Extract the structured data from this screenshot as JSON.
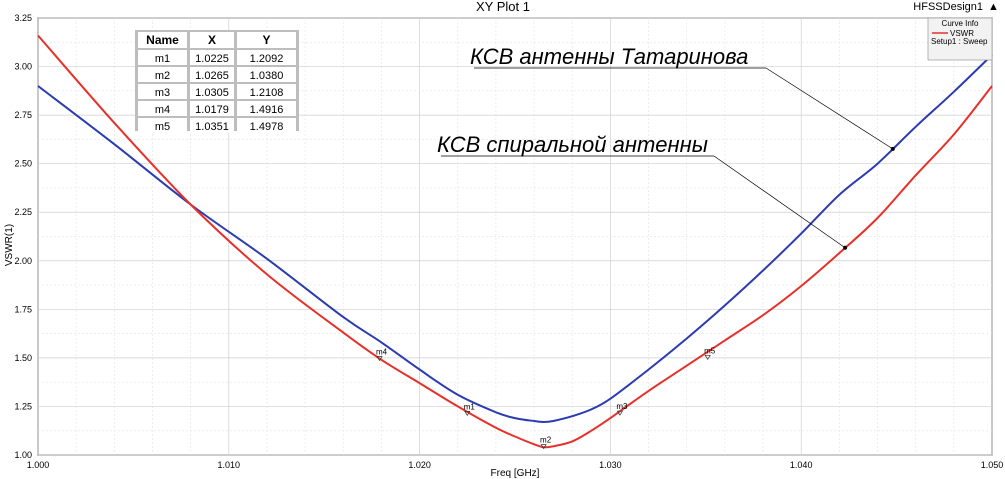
{
  "header": {
    "design_name": "HFSSDesign1",
    "scroll_arrow": "▲"
  },
  "legend": {
    "title": "Curve Info",
    "entries": [
      {
        "label": "VSWR",
        "sub": "Setup1 : Sweep",
        "color": "#e8302a"
      }
    ]
  },
  "marker_table": {
    "headers": [
      "Name",
      "X",
      "Y"
    ],
    "rows": [
      [
        "m1",
        "1.0225",
        "1.2092"
      ],
      [
        "m2",
        "1.0265",
        "1.0380"
      ],
      [
        "m3",
        "1.0305",
        "1.2108"
      ],
      [
        "m4",
        "1.0179",
        "1.4916"
      ],
      [
        "m5",
        "1.0351",
        "1.4978"
      ]
    ]
  },
  "annotations": [
    {
      "text": "КСВ антенны Татаринова",
      "target_series": 0,
      "target_x": 1.0448
    },
    {
      "text": "КСВ спиральной антенны",
      "target_series": 1,
      "target_x": 1.0423
    }
  ],
  "chart_data": {
    "type": "line",
    "title": "XY Plot 1",
    "xlabel": "Freq [GHz]",
    "ylabel": "VSWR(1)",
    "xlim": [
      1.0,
      1.05
    ],
    "ylim": [
      1.0,
      3.25
    ],
    "xticks": [
      1.0,
      1.01,
      1.02,
      1.03,
      1.04,
      1.05
    ],
    "xtick_labels": [
      "1.000",
      "1.010",
      "1.020",
      "1.030",
      "1.040",
      "1.050"
    ],
    "yticks": [
      1.0,
      1.25,
      1.5,
      1.75,
      2.0,
      2.25,
      2.5,
      2.75,
      3.0,
      3.25
    ],
    "ytick_labels": [
      "1.00",
      "1.25",
      "1.50",
      "1.75",
      "2.00",
      "2.25",
      "2.50",
      "2.75",
      "3.00",
      "3.25"
    ],
    "grid": true,
    "series": [
      {
        "color": "#2b3bb0",
        "x": [
          1.0,
          1.004,
          1.008,
          1.012,
          1.016,
          1.018,
          1.02,
          1.022,
          1.024,
          1.025,
          1.026,
          1.0265,
          1.027,
          1.028,
          1.029,
          1.03,
          1.032,
          1.034,
          1.036,
          1.038,
          1.04,
          1.042,
          1.044,
          1.046,
          1.048,
          1.05
        ],
        "y": [
          2.9,
          2.6,
          2.29,
          2.01,
          1.71,
          1.58,
          1.44,
          1.31,
          1.22,
          1.19,
          1.175,
          1.17,
          1.175,
          1.2,
          1.235,
          1.29,
          1.44,
          1.6,
          1.77,
          1.95,
          2.14,
          2.34,
          2.5,
          2.69,
          2.87,
          3.06
        ]
      },
      {
        "color": "#e8302a",
        "x": [
          1.0,
          1.004,
          1.008,
          1.012,
          1.016,
          1.018,
          1.02,
          1.022,
          1.024,
          1.025,
          1.026,
          1.0265,
          1.027,
          1.028,
          1.029,
          1.03,
          1.032,
          1.034,
          1.036,
          1.038,
          1.04,
          1.042,
          1.044,
          1.046,
          1.048,
          1.05
        ],
        "y": [
          3.16,
          2.71,
          2.29,
          1.93,
          1.63,
          1.49,
          1.37,
          1.25,
          1.14,
          1.095,
          1.055,
          1.04,
          1.045,
          1.07,
          1.125,
          1.19,
          1.33,
          1.46,
          1.59,
          1.72,
          1.87,
          2.04,
          2.22,
          2.44,
          2.65,
          2.9
        ]
      }
    ],
    "markers": [
      {
        "name": "m1",
        "x": 1.0225,
        "y": 1.2092
      },
      {
        "name": "m2",
        "x": 1.0265,
        "y": 1.038
      },
      {
        "name": "m3",
        "x": 1.0305,
        "y": 1.2108
      },
      {
        "name": "m4",
        "x": 1.0179,
        "y": 1.4916
      },
      {
        "name": "m5",
        "x": 1.0351,
        "y": 1.4978
      }
    ]
  }
}
